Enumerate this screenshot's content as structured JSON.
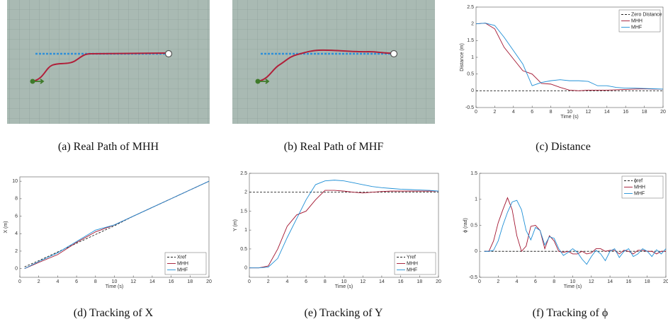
{
  "figures": [
    {
      "caption": "(a) Real Path of MHH"
    },
    {
      "caption": "(b) Real Path of MHF"
    }
  ],
  "chart_data": [
    {
      "type": "line",
      "caption": "(c) Distance",
      "xlabel": "Time (s)",
      "ylabel": "Distance (m)",
      "legend": "upper right",
      "xlim": [
        0,
        20
      ],
      "xticks": [
        0,
        2,
        4,
        6,
        8,
        10,
        12,
        14,
        16,
        18,
        20
      ],
      "ylim": [
        -0.5,
        2.5
      ],
      "yticks": [
        -0.5,
        0,
        0.5,
        1,
        1.5,
        2,
        2.5
      ],
      "x": [
        0,
        1,
        2,
        3,
        4,
        5,
        6,
        7,
        8,
        9,
        10,
        11,
        12,
        13,
        14,
        15,
        16,
        17,
        18,
        19,
        20
      ],
      "series": [
        {
          "name": "Zero Distance",
          "color": "#222222",
          "style": "dashed",
          "values": [
            0,
            0,
            0,
            0,
            0,
            0,
            0,
            0,
            0,
            0,
            0,
            0,
            0,
            0,
            0,
            0,
            0,
            0,
            0,
            0,
            0
          ]
        },
        {
          "name": "MHH",
          "color": "#a2142f",
          "style": "solid",
          "values": [
            2,
            2.02,
            1.85,
            1.3,
            0.95,
            0.6,
            0.5,
            0.22,
            0.2,
            0.1,
            0.02,
            0,
            0.02,
            0.02,
            0.02,
            0.03,
            0.04,
            0.05,
            0.06,
            0.05,
            0.05
          ]
        },
        {
          "name": "MHF",
          "color": "#1f8fd6",
          "style": "solid",
          "values": [
            2,
            2.02,
            1.95,
            1.6,
            1.2,
            0.8,
            0.15,
            0.25,
            0.3,
            0.33,
            0.3,
            0.3,
            0.28,
            0.15,
            0.15,
            0.1,
            0.08,
            0.08,
            0.07,
            0.06,
            0.05
          ]
        }
      ]
    },
    {
      "type": "line",
      "caption": "(d) Tracking of X",
      "xlabel": "Time (s)",
      "ylabel": "X (m)",
      "legend": "lower right",
      "xlim": [
        0,
        20
      ],
      "xticks": [
        0,
        2,
        4,
        6,
        8,
        10,
        12,
        14,
        16,
        18,
        20
      ],
      "ylim": [
        -1,
        10.5
      ],
      "yticks": [
        0,
        2,
        4,
        6,
        8,
        10
      ],
      "x": [
        0.5,
        2,
        4,
        6,
        8,
        10,
        12,
        14,
        16,
        18,
        20
      ],
      "series": [
        {
          "name": "Xref",
          "color": "#222222",
          "style": "dashed",
          "values": [
            0.2,
            0.9,
            1.9,
            2.9,
            3.9,
            4.9,
            6,
            7,
            8,
            9,
            10
          ]
        },
        {
          "name": "MHH",
          "color": "#a2142f",
          "style": "solid",
          "values": [
            0,
            0.7,
            1.6,
            3.0,
            4.2,
            5.0,
            6,
            7,
            8,
            9,
            10
          ]
        },
        {
          "name": "MHF",
          "color": "#1f8fd6",
          "style": "solid",
          "values": [
            0,
            0.8,
            1.8,
            3.1,
            4.4,
            5.0,
            6,
            7,
            8,
            9,
            10
          ]
        }
      ]
    },
    {
      "type": "line",
      "caption": "(e) Tracking of Y",
      "xlabel": "Time (s)",
      "ylabel": "Y (m)",
      "legend": "lower right",
      "xlim": [
        0,
        20
      ],
      "xticks": [
        0,
        2,
        4,
        6,
        8,
        10,
        12,
        14,
        16,
        18,
        20
      ],
      "ylim": [
        -0.25,
        2.5
      ],
      "yticks": [
        0,
        0.5,
        1,
        1.5,
        2,
        2.5
      ],
      "x": [
        0,
        1,
        2,
        3,
        4,
        5,
        6,
        7,
        8,
        9,
        10,
        11,
        12,
        13,
        14,
        15,
        16,
        17,
        18,
        19,
        20
      ],
      "series": [
        {
          "name": "Yref",
          "color": "#222222",
          "style": "dashed",
          "values": [
            2,
            2,
            2,
            2,
            2,
            2,
            2,
            2,
            2,
            2,
            2,
            2,
            2,
            2,
            2,
            2,
            2,
            2,
            2,
            2,
            2
          ]
        },
        {
          "name": "MHH",
          "color": "#a2142f",
          "style": "solid",
          "values": [
            0,
            0,
            0.05,
            0.5,
            1.1,
            1.4,
            1.5,
            1.8,
            2.05,
            2.05,
            2.03,
            2.0,
            1.98,
            2.0,
            2.02,
            2.03,
            2.03,
            2.03,
            2.03,
            2.03,
            2.03
          ]
        },
        {
          "name": "MHF",
          "color": "#1f8fd6",
          "style": "solid",
          "values": [
            0,
            0,
            0.02,
            0.25,
            0.8,
            1.3,
            1.8,
            2.2,
            2.3,
            2.32,
            2.3,
            2.25,
            2.2,
            2.15,
            2.12,
            2.1,
            2.08,
            2.07,
            2.06,
            2.05,
            2.03
          ]
        }
      ]
    },
    {
      "type": "line",
      "caption": "(f) Tracking of ϕ",
      "xlabel": "Time (s)",
      "ylabel": "ϕ (rad)",
      "legend": "upper right",
      "xlim": [
        0,
        20
      ],
      "xticks": [
        0,
        2,
        4,
        6,
        8,
        10,
        12,
        14,
        16,
        18,
        20
      ],
      "ylim": [
        -0.5,
        1.5
      ],
      "yticks": [
        -0.5,
        0,
        0.5,
        1,
        1.5
      ],
      "x": [
        0.5,
        1,
        1.5,
        2,
        2.5,
        3,
        3.5,
        4,
        4.5,
        5,
        5.5,
        6,
        6.5,
        7,
        7.5,
        8,
        8.5,
        9,
        9.5,
        10,
        10.5,
        11,
        11.5,
        12,
        12.5,
        13,
        13.5,
        14,
        14.5,
        15,
        15.5,
        16,
        16.5,
        17,
        17.5,
        18,
        18.5,
        19,
        19.5,
        20
      ],
      "series": [
        {
          "name": "ϕref",
          "color": "#222222",
          "style": "dashed",
          "values": [
            0,
            0,
            0,
            0,
            0,
            0,
            0,
            0,
            0,
            0,
            0,
            0,
            0,
            0,
            0,
            0,
            0,
            0,
            0,
            0,
            0,
            0,
            0,
            0,
            0,
            0,
            0,
            0,
            0,
            0,
            0,
            0,
            0,
            0,
            0,
            0,
            0,
            0,
            0,
            0
          ]
        },
        {
          "name": "MHH",
          "color": "#a2142f",
          "style": "solid",
          "values": [
            0,
            0,
            0.2,
            0.55,
            0.8,
            1.03,
            0.8,
            0.3,
            0.0,
            0.1,
            0.48,
            0.5,
            0.4,
            0.05,
            0.3,
            0.2,
            0.0,
            -0.02,
            0.0,
            -0.05,
            -0.05,
            0.0,
            -0.05,
            -0.03,
            0.05,
            0.05,
            0.0,
            0.02,
            0.02,
            -0.05,
            0.02,
            0.0,
            -0.05,
            0.02,
            0.02,
            0.0,
            0.0,
            -0.05,
            0.0,
            0.0
          ]
        },
        {
          "name": "MHF",
          "color": "#1f8fd6",
          "style": "solid",
          "values": [
            0,
            0,
            0.02,
            0.2,
            0.5,
            0.75,
            0.95,
            0.98,
            0.8,
            0.4,
            0.22,
            0.46,
            0.4,
            0.12,
            0.28,
            0.25,
            0.05,
            -0.08,
            -0.02,
            0.05,
            -0.02,
            -0.15,
            -0.25,
            -0.1,
            0.02,
            -0.05,
            -0.18,
            0.0,
            0.05,
            -0.12,
            0.0,
            0.05,
            -0.1,
            -0.05,
            0.05,
            0.0,
            -0.1,
            0.03,
            -0.05,
            0.05
          ]
        }
      ]
    }
  ]
}
